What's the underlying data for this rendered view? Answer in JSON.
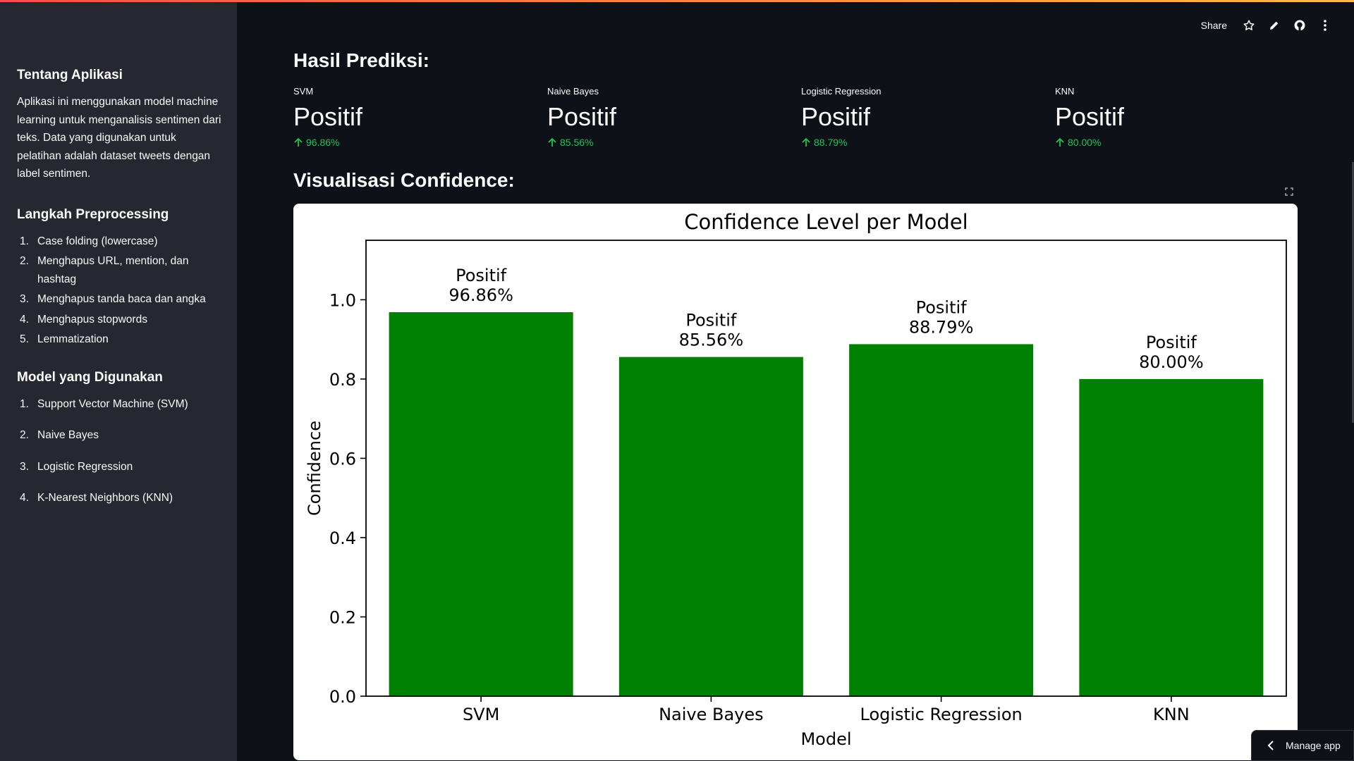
{
  "sidebar": {
    "about_heading": "Tentang Aplikasi",
    "about_text": "Aplikasi ini menggunakan model machine learning untuk menganalisis sentimen dari teks. Data yang digunakan untuk pelatihan adalah dataset tweets dengan label sentimen.",
    "preprocessing_heading": "Langkah Preprocessing",
    "preprocessing_steps": [
      {
        "num": "1.",
        "label": "Case folding (lowercase)"
      },
      {
        "num": "2.",
        "label": "Menghapus URL, mention, dan hashtag"
      },
      {
        "num": "3.",
        "label": "Menghapus tanda baca dan angka"
      },
      {
        "num": "4.",
        "label": "Menghapus stopwords"
      },
      {
        "num": "5.",
        "label": "Lemmatization"
      }
    ],
    "models_heading": "Model yang Digunakan",
    "models": [
      {
        "num": "1.",
        "label": "Support Vector Machine (SVM)"
      },
      {
        "num": "2.",
        "label": "Naive Bayes"
      },
      {
        "num": "3.",
        "label": "Logistic Regression"
      },
      {
        "num": "4.",
        "label": "K-Nearest Neighbors (KNN)"
      }
    ]
  },
  "toolbar": {
    "share_label": "Share",
    "icons": [
      "star-icon",
      "pencil-icon",
      "github-icon",
      "more-vertical-icon"
    ]
  },
  "main": {
    "results_heading": "Hasil Prediksi:",
    "metrics": [
      {
        "label": "SVM",
        "value": "Positif",
        "delta": "96.86%"
      },
      {
        "label": "Naive Bayes",
        "value": "Positif",
        "delta": "85.56%"
      },
      {
        "label": "Logistic Regression",
        "value": "Positif",
        "delta": "88.79%"
      },
      {
        "label": "KNN",
        "value": "Positif",
        "delta": "80.00%"
      }
    ],
    "viz_heading": "Visualisasi Confidence:"
  },
  "colors": {
    "delta_positive": "#21c354",
    "bar": "#008000",
    "background": "#0e1117",
    "sidebar": "#262730"
  },
  "chart_data": {
    "type": "bar",
    "title": "Confidence Level per Model",
    "xlabel": "Model",
    "ylabel": "Confidence",
    "categories": [
      "SVM",
      "Naive Bayes",
      "Logistic Regression",
      "KNN"
    ],
    "values": [
      0.9686,
      0.8556,
      0.8879,
      0.8
    ],
    "bar_labels": [
      [
        "Positif",
        "96.86%"
      ],
      [
        "Positif",
        "85.56%"
      ],
      [
        "Positif",
        "88.79%"
      ],
      [
        "Positif",
        "80.00%"
      ]
    ],
    "ylim": [
      0,
      1.15
    ],
    "yticks": [
      "0.0",
      "0.2",
      "0.4",
      "0.6",
      "0.8",
      "1.0"
    ],
    "ytick_values": [
      0,
      0.2,
      0.4,
      0.6,
      0.8,
      1.0
    ],
    "grid": false,
    "color": "#008000"
  },
  "footer": {
    "manage_app_label": "Manage app"
  }
}
